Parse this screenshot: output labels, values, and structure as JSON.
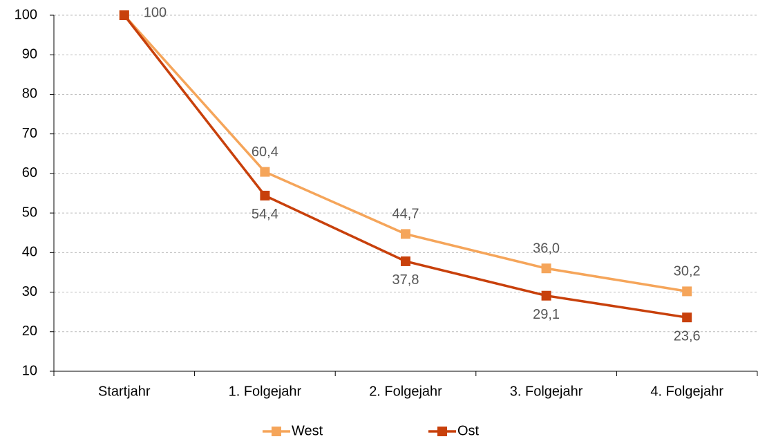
{
  "chart_data": {
    "type": "line",
    "categories": [
      "Startjahr",
      "1. Folgejahr",
      "2. Folgejahr",
      "3. Folgejahr",
      "4. Folgejahr"
    ],
    "series": [
      {
        "name": "West",
        "color": "#f5a55a",
        "values": [
          100,
          60.4,
          44.7,
          36.0,
          30.2
        ],
        "value_labels": [
          "100",
          "60,4",
          "44,7",
          "36,0",
          "30,2"
        ]
      },
      {
        "name": "Ost",
        "color": "#c8400b",
        "values": [
          100,
          54.4,
          37.8,
          29.1,
          23.6
        ],
        "value_labels": [
          null,
          "54,4",
          "37,8",
          "29,1",
          "23,6"
        ]
      }
    ],
    "ylim": [
      10,
      100
    ],
    "yticks": [
      10,
      20,
      30,
      40,
      50,
      60,
      70,
      80,
      90,
      100
    ],
    "grid": true,
    "legend": "bottom"
  }
}
